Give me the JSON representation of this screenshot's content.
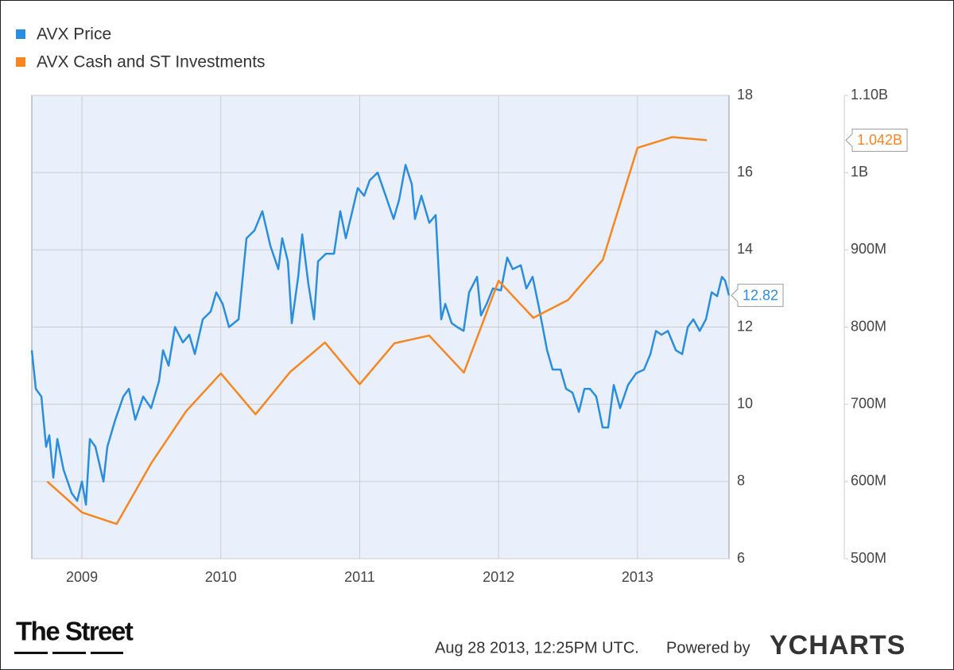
{
  "chart_data": {
    "type": "line",
    "xlim": [
      2008.639,
      2013.659
    ],
    "xticks": [
      2009,
      2010,
      2011,
      2012,
      2013
    ],
    "ylim": [
      6,
      18
    ],
    "yticks": [
      6,
      8,
      10,
      12,
      14,
      16,
      18
    ],
    "y2lim": [
      500000000,
      1100000000
    ],
    "y2ticks": [
      {
        "value": 500000000,
        "label": "500M"
      },
      {
        "value": 600000000,
        "label": "600M"
      },
      {
        "value": 700000000,
        "label": "700M"
      },
      {
        "value": 800000000,
        "label": "800M"
      },
      {
        "value": 900000000,
        "label": "900M"
      },
      {
        "value": 1000000000,
        "label": "1B"
      },
      {
        "value": 1100000000,
        "label": "1.10B"
      }
    ],
    "grid": true,
    "legend": "top-left",
    "series": [
      {
        "name": "AVX Price",
        "color": "#2a8ee0",
        "axis": "y",
        "x": [
          2008.639,
          2008.668,
          2008.708,
          2008.742,
          2008.765,
          2008.794,
          2008.823,
          2008.868,
          2008.926,
          2008.966,
          2009.0,
          2009.029,
          2009.057,
          2009.097,
          2009.155,
          2009.183,
          2009.24,
          2009.298,
          2009.338,
          2009.384,
          2009.441,
          2009.498,
          2009.555,
          2009.584,
          2009.624,
          2009.67,
          2009.727,
          2009.773,
          2009.813,
          2009.87,
          2009.927,
          2009.967,
          2010.013,
          2010.059,
          2010.128,
          2010.185,
          2010.242,
          2010.299,
          2010.357,
          2010.414,
          2010.442,
          2010.483,
          2010.511,
          2010.557,
          2010.586,
          2010.631,
          2010.671,
          2010.7,
          2010.757,
          2010.815,
          2010.86,
          2010.9,
          2010.94,
          2010.986,
          2011.032,
          2011.072,
          2011.129,
          2011.187,
          2011.244,
          2011.284,
          2011.33,
          2011.375,
          2011.398,
          2011.444,
          2011.501,
          2011.547,
          2011.587,
          2011.616,
          2011.662,
          2011.702,
          2011.748,
          2011.788,
          2011.845,
          2011.873,
          2011.914,
          2011.959,
          2012.017,
          2012.062,
          2012.102,
          2012.16,
          2012.2,
          2012.245,
          2012.291,
          2012.349,
          2012.389,
          2012.446,
          2012.486,
          2012.532,
          2012.578,
          2012.618,
          2012.658,
          2012.703,
          2012.749,
          2012.789,
          2012.829,
          2012.875,
          2012.932,
          2012.99,
          2013.047,
          2013.093,
          2013.133,
          2013.173,
          2013.219,
          2013.276,
          2013.322,
          2013.362,
          2013.402,
          2013.448,
          2013.493,
          2013.534,
          2013.574,
          2013.608,
          2013.631,
          2013.659
        ],
        "values": [
          11.4,
          10.4,
          10.2,
          8.9,
          9.2,
          8.1,
          9.1,
          8.3,
          7.7,
          7.5,
          8.0,
          7.4,
          9.1,
          8.9,
          8.0,
          8.9,
          9.6,
          10.2,
          10.4,
          9.6,
          10.2,
          9.9,
          10.6,
          11.4,
          11.0,
          12.0,
          11.6,
          11.8,
          11.3,
          12.2,
          12.4,
          12.9,
          12.6,
          12.0,
          12.2,
          14.3,
          14.5,
          15.0,
          14.1,
          13.5,
          14.3,
          13.7,
          12.1,
          13.3,
          14.4,
          13.1,
          12.2,
          13.7,
          13.9,
          13.9,
          15.0,
          14.3,
          14.9,
          15.6,
          15.4,
          15.8,
          16.0,
          15.4,
          14.8,
          15.3,
          16.2,
          15.7,
          14.8,
          15.4,
          14.7,
          14.9,
          12.2,
          12.6,
          12.1,
          12.0,
          11.9,
          12.9,
          13.3,
          12.3,
          12.6,
          13.0,
          12.95,
          13.8,
          13.5,
          13.6,
          13.0,
          13.3,
          12.5,
          11.4,
          10.9,
          10.9,
          10.4,
          10.3,
          9.8,
          10.4,
          10.4,
          10.2,
          9.4,
          9.4,
          10.5,
          9.9,
          10.5,
          10.8,
          10.9,
          11.3,
          11.9,
          11.8,
          11.9,
          11.4,
          11.3,
          12.0,
          12.2,
          11.9,
          12.2,
          12.9,
          12.8,
          13.3,
          13.2,
          12.82
        ]
      },
      {
        "name": "AVX Cash and ST Investments",
        "color": "#f7861e",
        "axis": "y2",
        "x": [
          2008.75,
          2009.0,
          2009.25,
          2009.5,
          2009.75,
          2010.0,
          2010.25,
          2010.5,
          2010.75,
          2011.0,
          2011.25,
          2011.5,
          2011.75,
          2012.0,
          2012.25,
          2012.5,
          2012.75,
          2013.0,
          2013.25,
          2013.5
        ],
        "values": [
          600000000,
          560000000,
          545000000,
          624000000,
          691000000,
          740000000,
          687000000,
          742000000,
          780000000,
          726000000,
          779000000,
          789000000,
          741000000,
          860000000,
          812000000,
          835000000,
          887000000,
          1032000000,
          1046000000,
          1042000000
        ],
        "value_labels": [
          null,
          null,
          null,
          null,
          null,
          null,
          null,
          null,
          null,
          null,
          null,
          null,
          null,
          null,
          null,
          null,
          null,
          null,
          null,
          "1.042B"
        ]
      }
    ]
  },
  "footer": {
    "logo": "The Street",
    "timestamp": "Aug 28 2013, 12:25PM UTC.",
    "powered_by": "Powered by",
    "brand": "YCHARTS"
  }
}
